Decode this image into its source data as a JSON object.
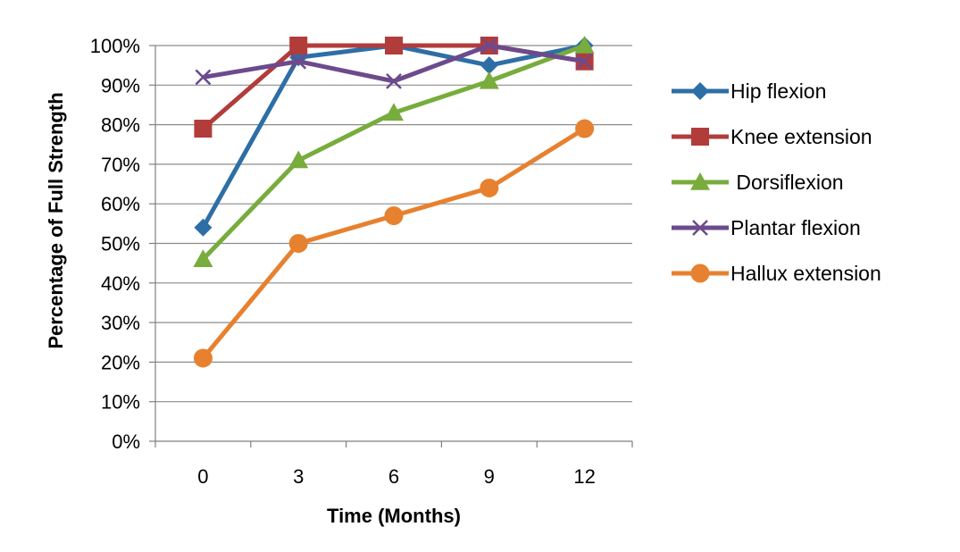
{
  "chart_data": {
    "type": "line",
    "title": "",
    "xlabel": "Time (Months)",
    "ylabel": "Percentage of Full Strength",
    "categories": [
      "0",
      "3",
      "6",
      "9",
      "12"
    ],
    "ylim": [
      0,
      100
    ],
    "ytick_step": 10,
    "ytick_labels": [
      "0%",
      "10%",
      "20%",
      "30%",
      "40%",
      "50%",
      "60%",
      "70%",
      "80%",
      "90%",
      "100%"
    ],
    "grid": true,
    "legend_position": "right",
    "series": [
      {
        "name": "Hip flexion",
        "values": [
          54,
          97,
          100,
          95,
          100
        ],
        "color": "#2e6ea6",
        "marker": "diamond"
      },
      {
        "name": "Knee extension",
        "values": [
          79,
          100,
          100,
          100,
          96
        ],
        "color": "#b23c3a",
        "marker": "square"
      },
      {
        "name": " Dorsiflexion",
        "values": [
          46,
          71,
          83,
          91,
          100
        ],
        "color": "#78ac3c",
        "marker": "triangle"
      },
      {
        "name": "Plantar flexion",
        "values": [
          92,
          96,
          91,
          100,
          96
        ],
        "color": "#6d4a8c",
        "marker": "x"
      },
      {
        "name": "Hallux extension",
        "values": [
          21,
          50,
          57,
          64,
          79
        ],
        "color": "#e7812f",
        "marker": "circle"
      }
    ]
  }
}
